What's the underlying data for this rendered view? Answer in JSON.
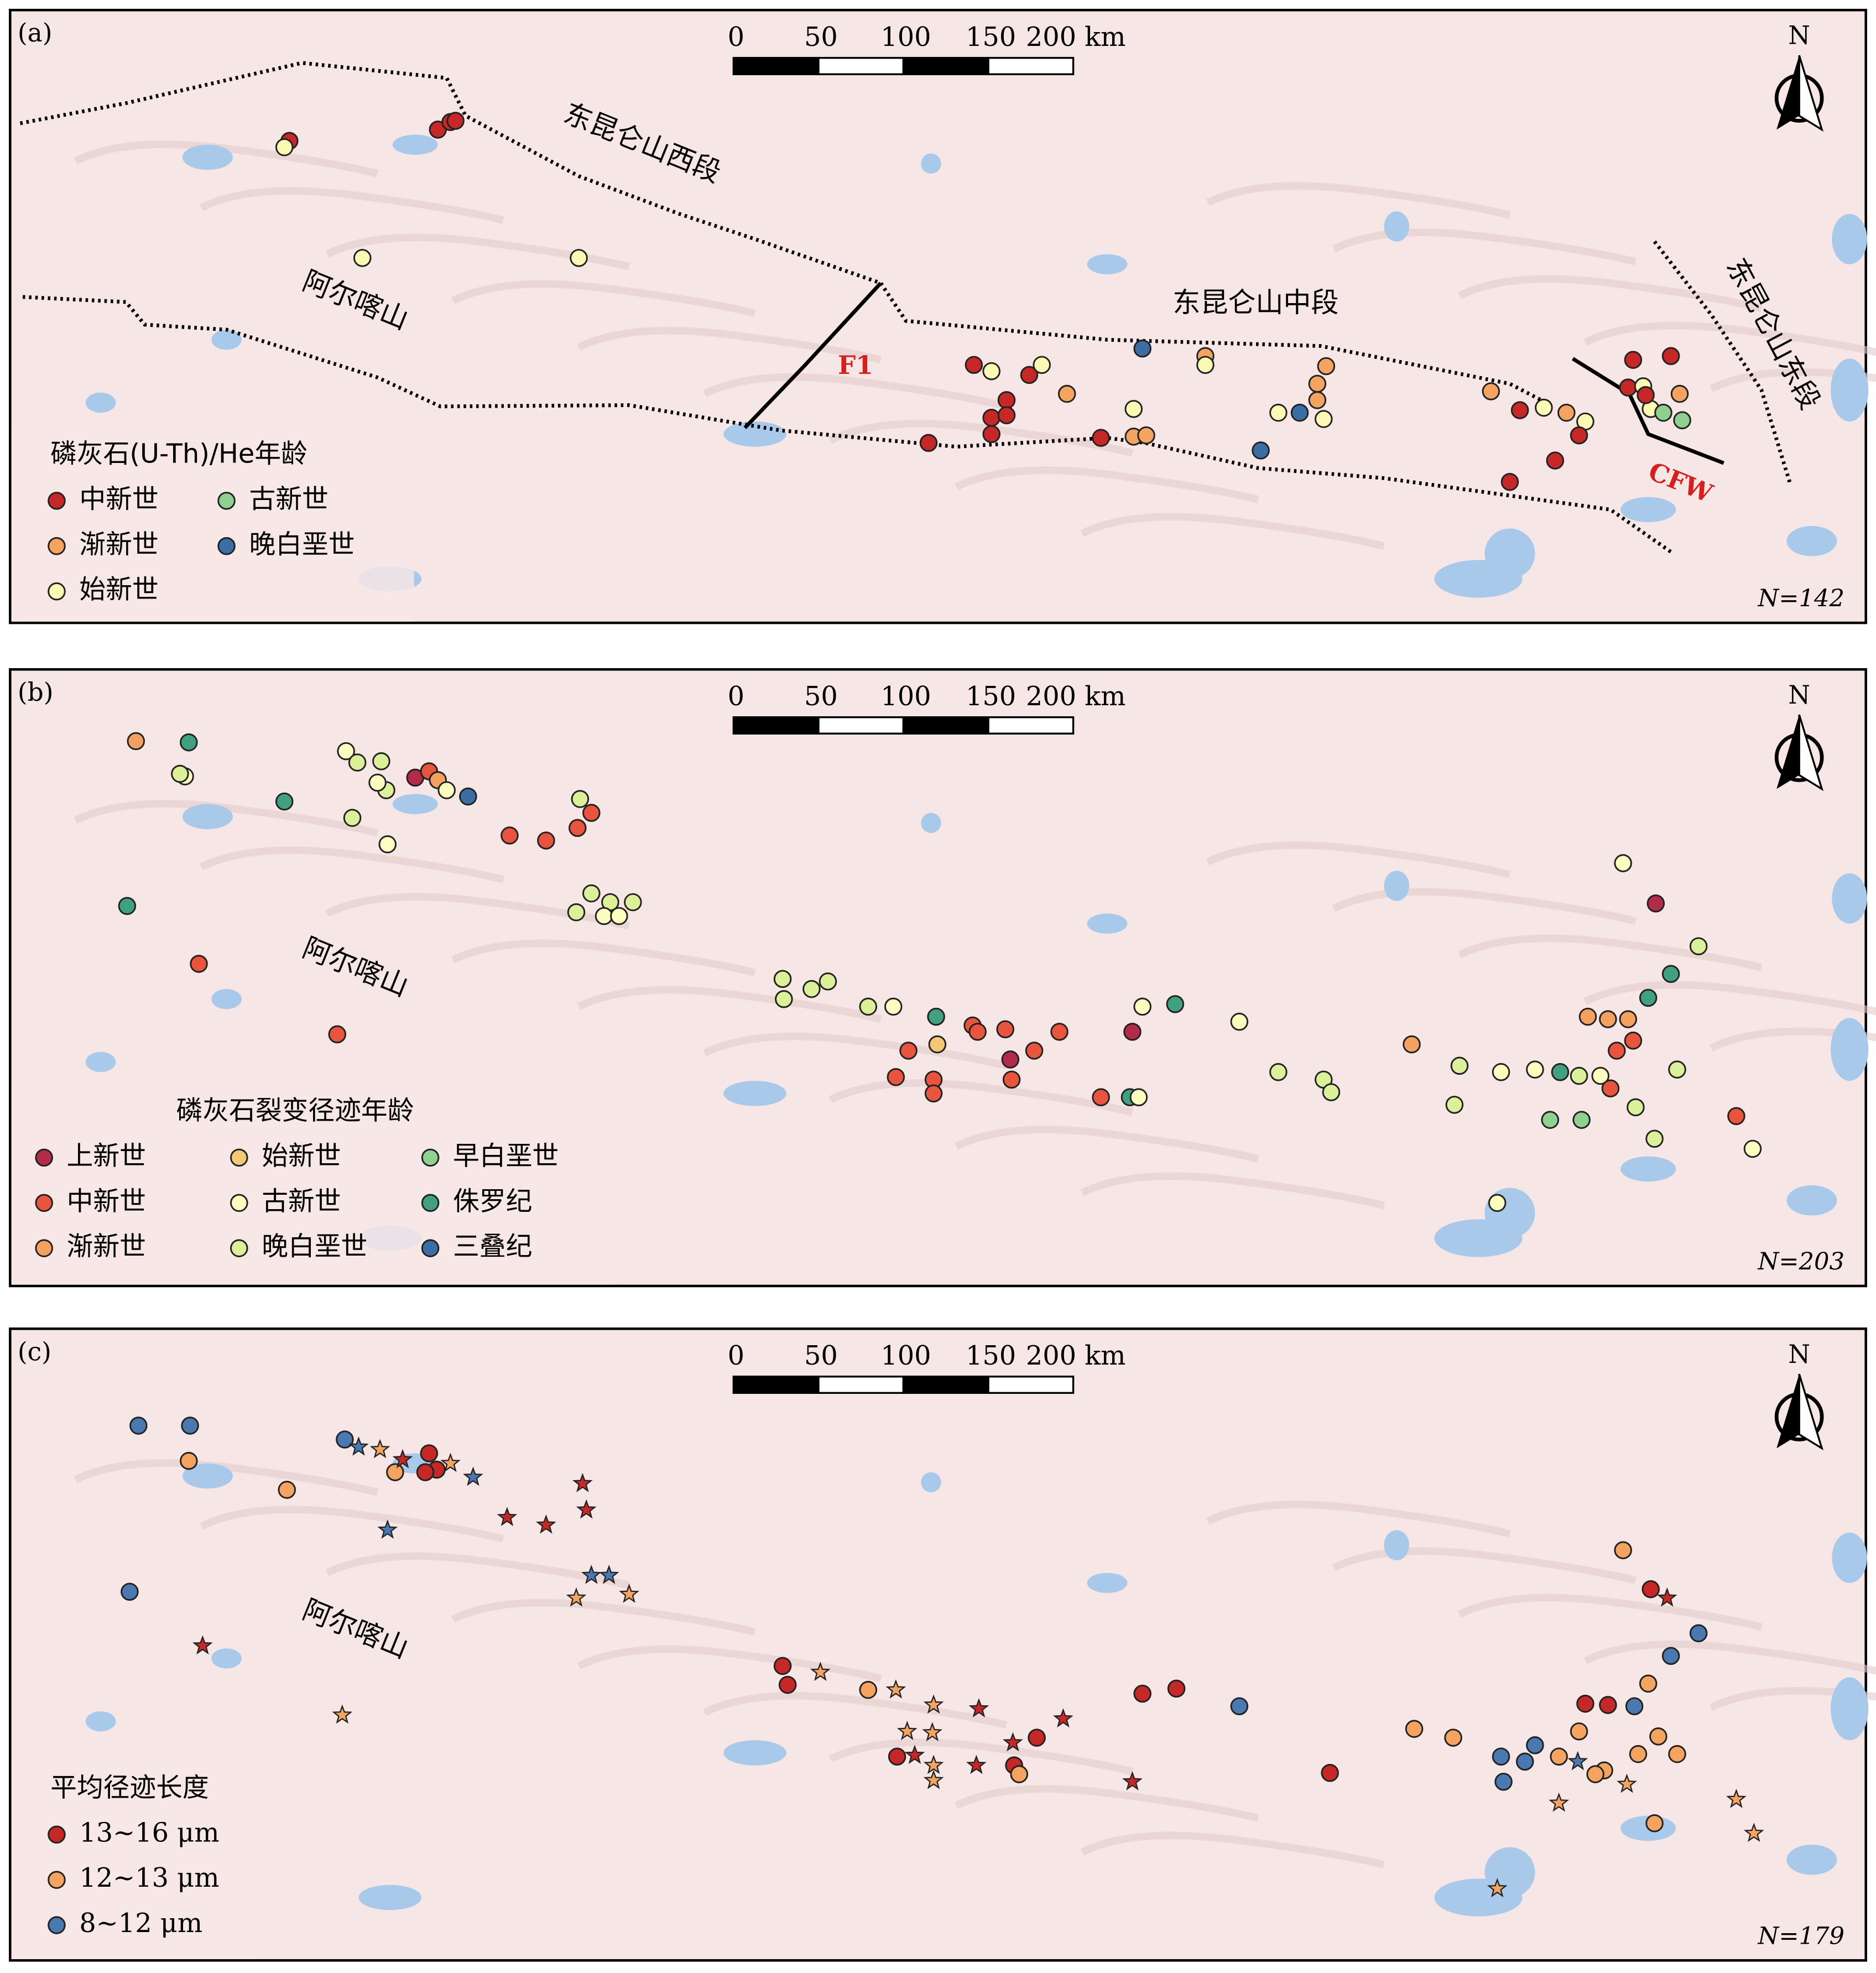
{
  "panels": [
    {
      "label": "(a)",
      "scale_bar": [
        "0",
        "50",
        "100",
        "150",
        "200 km"
      ],
      "north": "N",
      "place_labels": [
        "东昆仑山西段",
        "阿尔喀山",
        "东昆仑山中段",
        "东昆仑山东段"
      ],
      "fault_labels": [
        "F1",
        "CFW"
      ],
      "legend": {
        "title": "磷灰石(U-Th)/He年龄",
        "items": [
          {
            "label": "中新世",
            "color": "#c62828"
          },
          {
            "label": "古新世",
            "color": "#8fcf8f"
          },
          {
            "label": "渐新世",
            "color": "#f4a460"
          },
          {
            "label": "晚白垩世",
            "color": "#3a6ea5"
          },
          {
            "label": "始新世",
            "color": "#fafab4"
          }
        ]
      },
      "count": "N=142"
    },
    {
      "label": "(b)",
      "scale_bar": [
        "0",
        "50",
        "100",
        "150",
        "200 km"
      ],
      "north": "N",
      "place_labels": [
        "阿尔喀山"
      ],
      "legend": {
        "title": "磷灰石裂变径迹年龄",
        "items": [
          {
            "label": "上新世",
            "color": "#b22b4a"
          },
          {
            "label": "始新世",
            "color": "#f5c878"
          },
          {
            "label": "早白垩世",
            "color": "#90d090"
          },
          {
            "label": "中新世",
            "color": "#e8543e"
          },
          {
            "label": "古新世",
            "color": "#fdfdc0"
          },
          {
            "label": "侏罗纪",
            "color": "#40a080"
          },
          {
            "label": "渐新世",
            "color": "#f4a060"
          },
          {
            "label": "晚白垩世",
            "color": "#dcf09a"
          },
          {
            "label": "三叠纪",
            "color": "#3a6ea5"
          }
        ]
      },
      "count": "N=203"
    },
    {
      "label": "(c)",
      "scale_bar": [
        "0",
        "50",
        "100",
        "150",
        "200 km"
      ],
      "north": "N",
      "place_labels": [
        "阿尔喀山"
      ],
      "legend": {
        "title": "平均径迹长度",
        "items": [
          {
            "label": "13~16 μm",
            "color": "#c62828"
          },
          {
            "label": "12~13 μm",
            "color": "#f4a460"
          },
          {
            "label": "8~12 μm",
            "color": "#4a78b0"
          }
        ]
      },
      "count": "N=179"
    }
  ]
}
